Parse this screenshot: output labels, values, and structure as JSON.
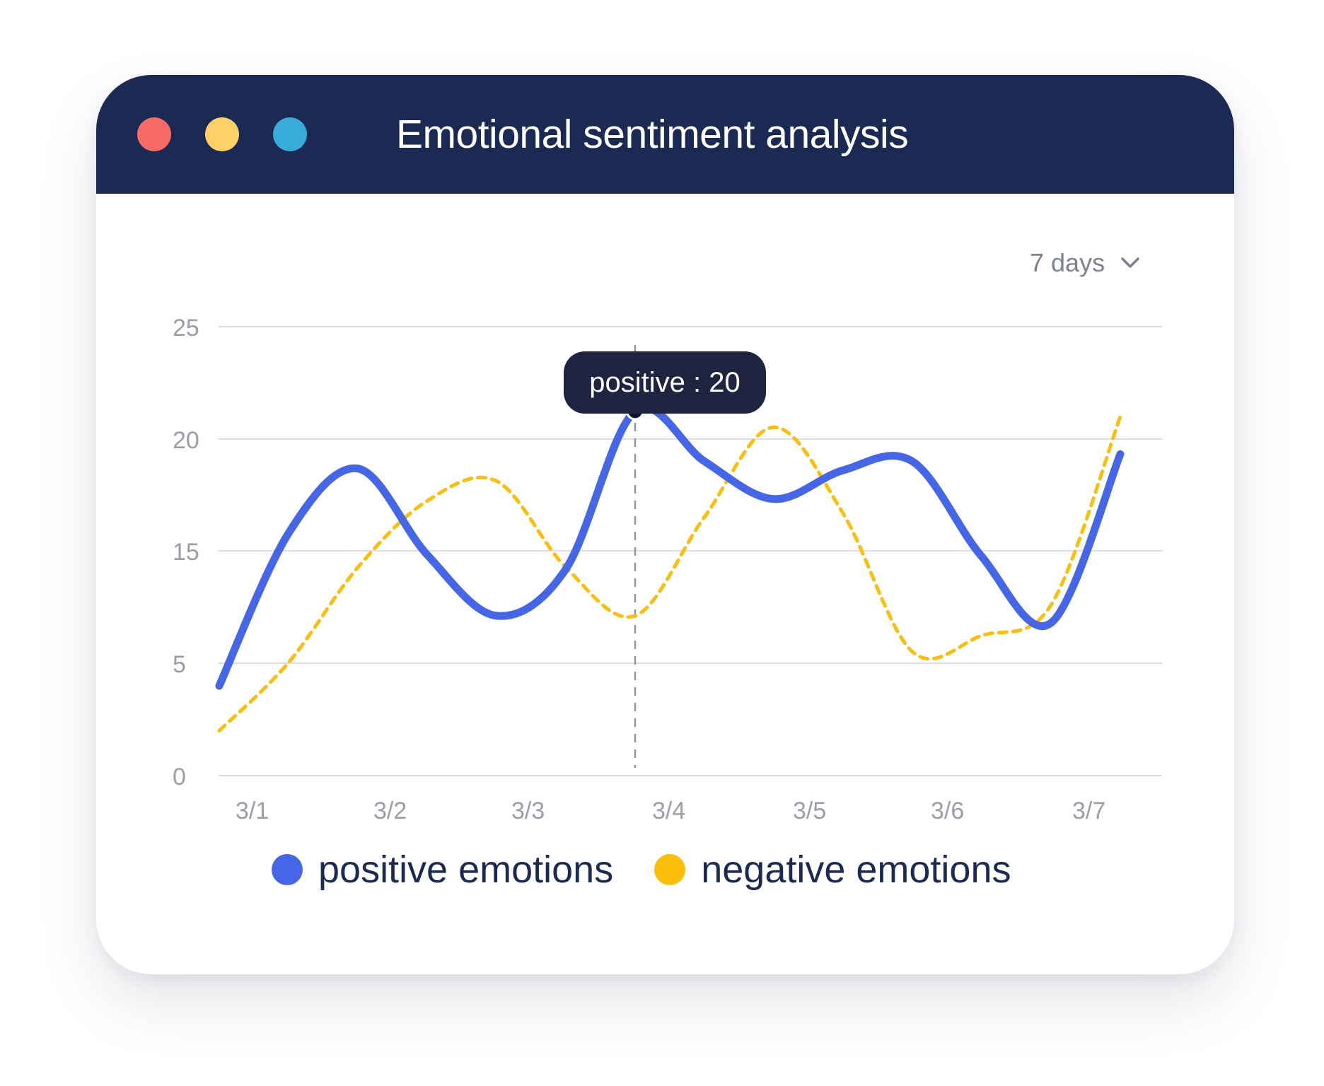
{
  "window": {
    "title": "Emotional sentiment analysis",
    "controls": [
      {
        "name": "close-dot",
        "color": "#f86b65"
      },
      {
        "name": "minimize-dot",
        "color": "#fed066"
      },
      {
        "name": "maximize-dot",
        "color": "#37acda"
      }
    ]
  },
  "range_select": {
    "value": "7 days",
    "icon": "chevron-down-icon"
  },
  "tooltip": {
    "text": "positive : 20"
  },
  "colors": {
    "titlebar": "#1b2a52",
    "positive": "#4566e6",
    "negative": "#fbbf09",
    "grid": "#cfd2d8",
    "axis_text": "#9a9ea8",
    "legend_text": "#1b2a52",
    "tooltip_bg": "#1f2540"
  },
  "chart_data": {
    "type": "line",
    "categories": [
      "3/1",
      "3/2",
      "3/3",
      "3/4",
      "3/5",
      "3/6",
      "3/7"
    ],
    "y_ticks": [
      25,
      20,
      15,
      5,
      0
    ],
    "ylim": [
      0,
      25
    ],
    "grid": true,
    "legend_position": "bottom",
    "x": [
      "3/1",
      "3/1.5",
      "3/2",
      "3/2.5",
      "3/3",
      "3/3.5",
      "3/4",
      "3/4.5",
      "3/5",
      "3/5.5",
      "3/6",
      "3/6.5",
      "3/7",
      "3/7.5"
    ],
    "series": [
      {
        "name": "positive emotions",
        "style": "solid",
        "values": [
          5,
          13.5,
          17.1,
          12.3,
          8.9,
          11.5,
          20.3,
          17.5,
          15.4,
          17,
          17.5,
          12.2,
          8.5,
          17.9
        ]
      },
      {
        "name": "negative emotions",
        "style": "dashed",
        "values": [
          2.5,
          6.3,
          11.6,
          15.3,
          16.4,
          11.6,
          8.9,
          14.4,
          19.4,
          14.6,
          6.9,
          7.8,
          9.5,
          20
        ]
      }
    ],
    "highlight": {
      "series": "positive emotions",
      "x": "3/4",
      "value": 20
    }
  }
}
